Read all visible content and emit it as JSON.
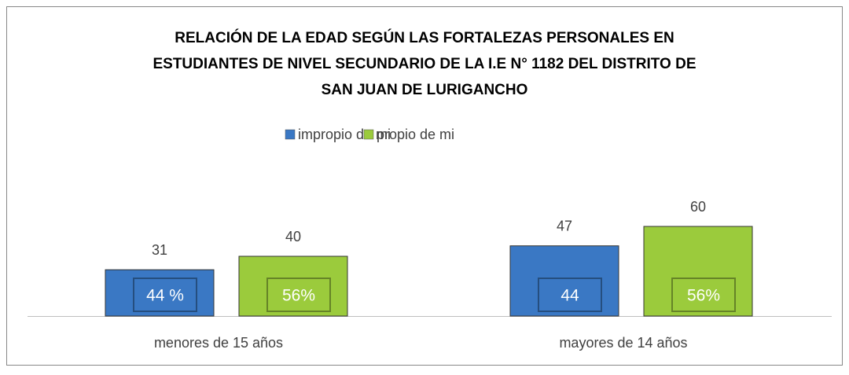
{
  "chart_data": {
    "type": "bar",
    "title": [
      "RELACIÓN DE LA EDAD SEGÚN LAS FORTALEZAS PERSONALES EN",
      "ESTUDIANTES DE NIVEL SECUNDARIO DE LA I.E N° 1182 DEL DISTRITO DE",
      "SAN JUAN DE LURIGANCHO"
    ],
    "categories": [
      "menores de 15 años",
      "mayores de 14 años"
    ],
    "series": [
      {
        "name": "impropio de mi",
        "color": "#3a78c4",
        "values": [
          31,
          47
        ],
        "share_labels": [
          "44 %",
          "44"
        ]
      },
      {
        "name": "propio de mi",
        "color": "#9bcb3c",
        "values": [
          40,
          60
        ],
        "share_labels": [
          "56%",
          "56%"
        ]
      }
    ],
    "legend": "top"
  }
}
